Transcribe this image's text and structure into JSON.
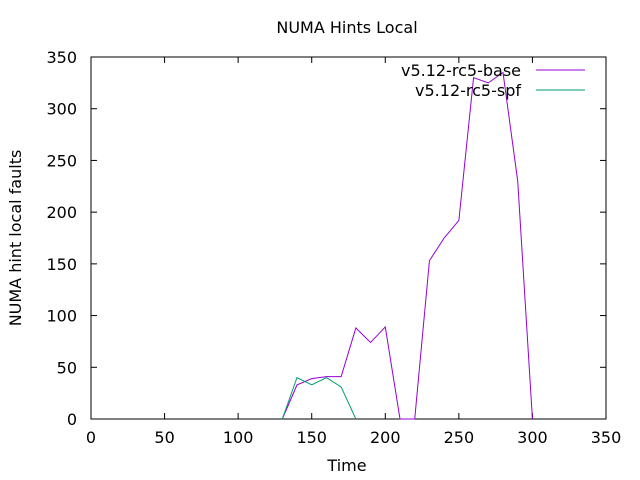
{
  "chart_data": {
    "type": "line",
    "title": "NUMA Hints Local",
    "xlabel": "Time",
    "ylabel": "NUMA hint local faults",
    "xlim": [
      0,
      350
    ],
    "ylim": [
      0,
      350
    ],
    "xticks": [
      0,
      50,
      100,
      150,
      200,
      250,
      300,
      350
    ],
    "yticks": [
      0,
      50,
      100,
      150,
      200,
      250,
      300,
      350
    ],
    "grid": false,
    "legend_position": "top-right",
    "series": [
      {
        "name": "v5.12-rc5-base",
        "color": "#9400d3",
        "x": [
          130,
          140,
          150,
          160,
          170,
          180,
          190,
          200,
          210,
          220,
          230,
          240,
          250,
          260,
          270,
          280,
          290,
          300
        ],
        "y": [
          0,
          33,
          39,
          41,
          41,
          88,
          74,
          89,
          0,
          0,
          153,
          175,
          192,
          330,
          325,
          335,
          230,
          0
        ]
      },
      {
        "name": "v5.12-rc5-spf",
        "color": "#009e73",
        "x": [
          130,
          140,
          150,
          160,
          170,
          180
        ],
        "y": [
          0,
          40,
          33,
          40,
          31,
          0
        ]
      }
    ]
  }
}
